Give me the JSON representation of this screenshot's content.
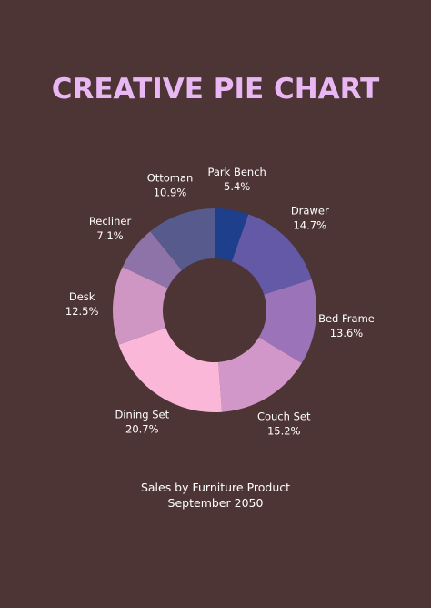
{
  "title": "CREATIVE PIE CHART",
  "footer": {
    "line1": "Sales by Furniture Product",
    "line2": "September 2050"
  },
  "colors": {
    "background": "#4d3535",
    "title": "#e9b8f4"
  },
  "chart_data": {
    "type": "pie",
    "title": "CREATIVE PIE CHART",
    "subtitle": "Sales by Furniture Product September 2050",
    "donut": true,
    "slices": [
      {
        "label": "Park Bench",
        "value": 5.4,
        "display": "5.4%",
        "color": "#1d3f8c"
      },
      {
        "label": "Drawer",
        "value": 14.7,
        "display": "14.7%",
        "color": "#6459a7"
      },
      {
        "label": "Bed Frame",
        "value": 13.6,
        "display": "13.6%",
        "color": "#9a73b8"
      },
      {
        "label": "Couch Set",
        "value": 15.2,
        "display": "15.2%",
        "color": "#d297c9"
      },
      {
        "label": "Dining Set",
        "value": 20.7,
        "display": "20.7%",
        "color": "#fbb7d7"
      },
      {
        "label": "Desk",
        "value": 12.5,
        "display": "12.5%",
        "color": "#cf96c4"
      },
      {
        "label": "Recliner",
        "value": 7.1,
        "display": "7.1%",
        "color": "#8e73a8"
      },
      {
        "label": "Ottoman",
        "value": 10.9,
        "display": "10.9%",
        "color": "#575a8c"
      }
    ]
  }
}
